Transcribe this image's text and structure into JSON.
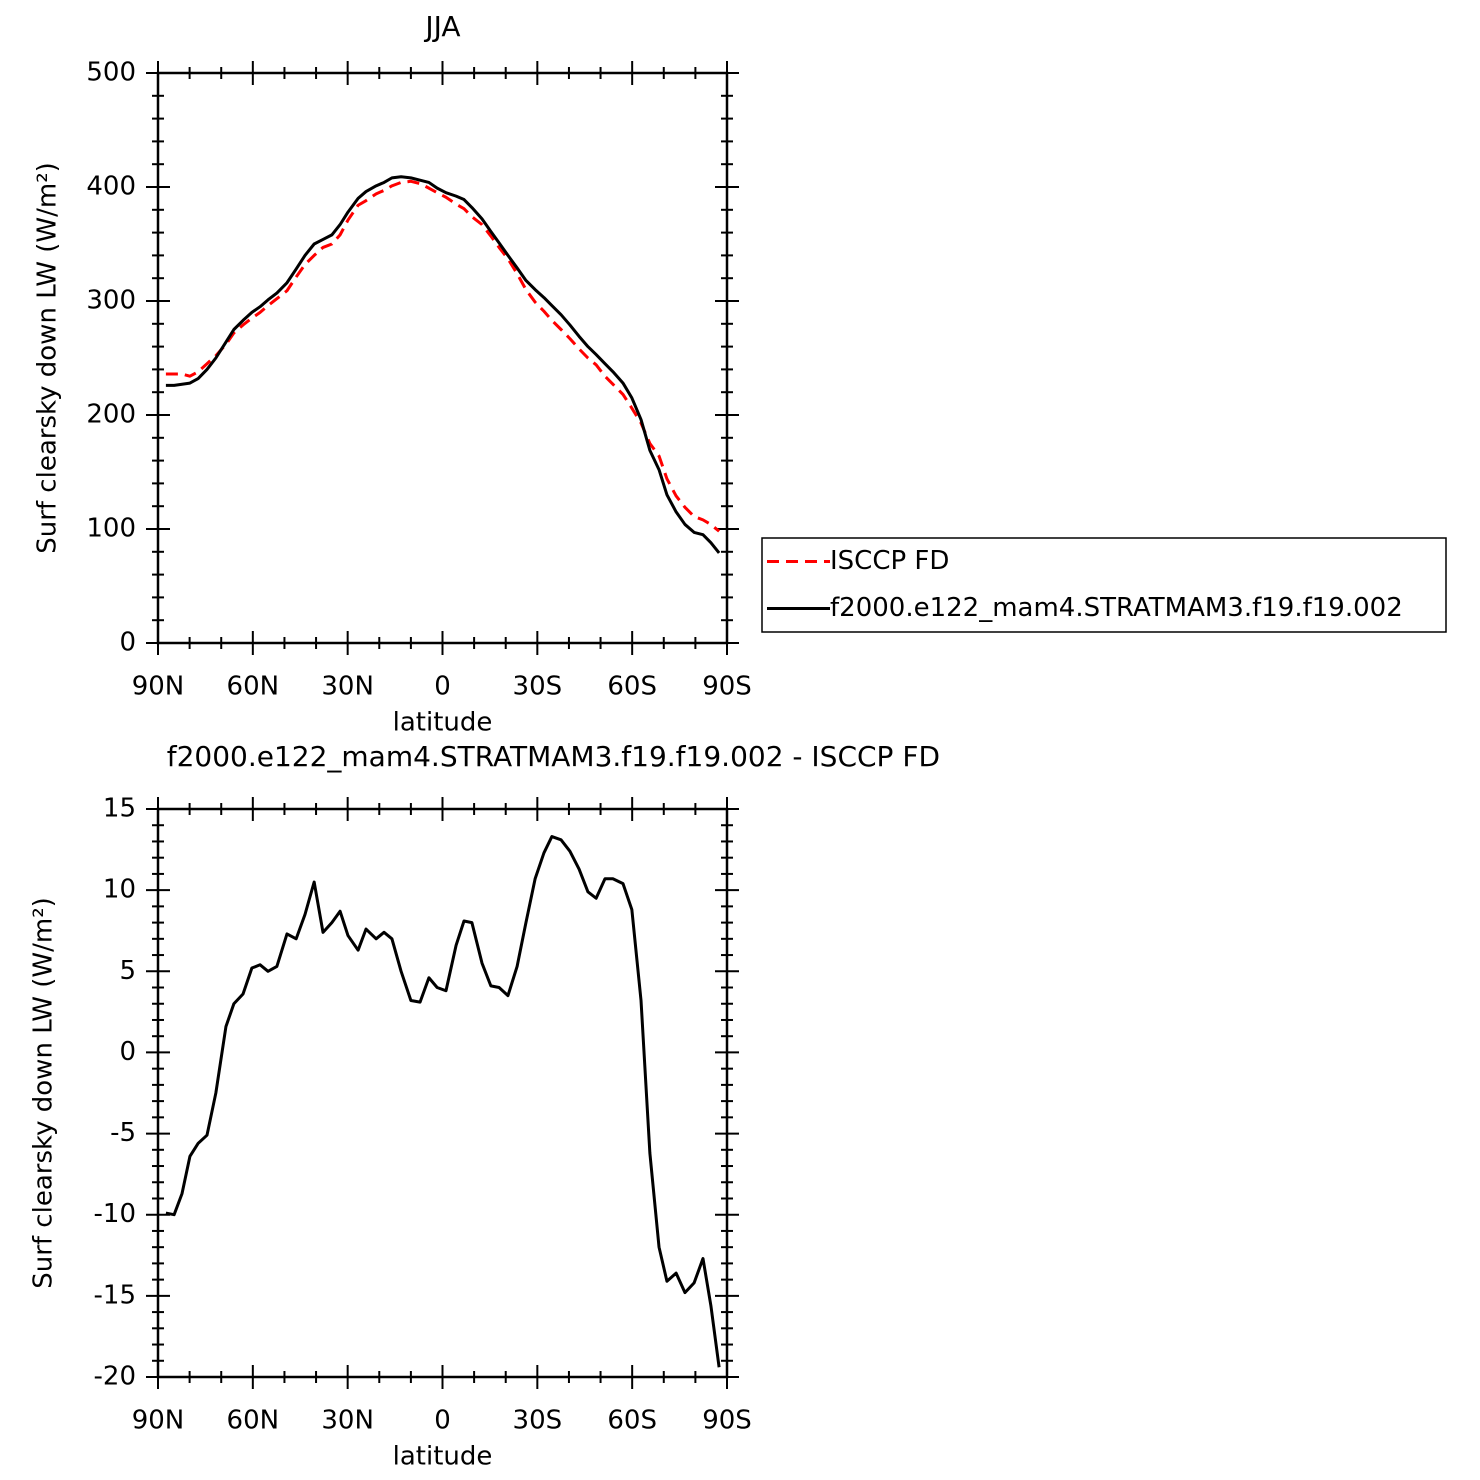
{
  "chart_data": [
    {
      "type": "line",
      "title": "JJA",
      "xlabel": "latitude",
      "ylabel": "Surf clearsky down LW (W/m²)",
      "x": [
        87.5,
        84.9,
        82.4,
        79.9,
        77.3,
        74.5,
        71.7,
        68.5,
        66.0,
        63.1,
        60.3,
        57.7,
        55.2,
        52.4,
        49.2,
        46.3,
        43.5,
        40.6,
        37.8,
        35.0,
        32.4,
        29.9,
        26.7,
        24.2,
        21.0,
        18.5,
        16.0,
        13.1,
        10.0,
        7.1,
        4.3,
        1.7,
        -1.1,
        -4.3,
        -6.8,
        -9.3,
        -12.5,
        -15.3,
        -17.9,
        -20.7,
        -23.6,
        -26.4,
        -29.3,
        -32.1,
        -34.6,
        -37.5,
        -40.3,
        -43.2,
        -46.0,
        -48.6,
        -51.4,
        -53.9,
        -57.1,
        -59.9,
        -62.8,
        -65.6,
        -68.5,
        -71.0,
        -73.9,
        -76.7,
        -79.6,
        -82.4,
        -84.9,
        -87.5
      ],
      "series": [
        {
          "name": "ISCCP FD",
          "color": "#ff0000",
          "line_style": "dashed",
          "values": [
            236,
            236,
            236,
            234,
            238,
            245,
            252,
            262,
            272,
            279,
            285,
            290,
            296,
            302,
            309,
            321,
            332,
            340,
            347,
            350,
            358,
            371,
            384,
            388,
            394,
            397,
            401,
            404,
            405,
            403,
            399,
            395,
            391,
            385,
            381,
            374,
            367,
            357,
            347,
            337,
            324,
            310,
            299,
            291,
            283,
            275,
            267,
            258,
            250,
            244,
            234,
            227,
            218,
            206,
            193,
            175,
            164,
            144,
            129,
            119,
            111,
            108,
            104,
            98
          ]
        },
        {
          "name": "f2000.e122_mam4.STRATMAM3.f19.f19.002",
          "color": "#000000",
          "line_style": "solid",
          "values": [
            226,
            226,
            227,
            228,
            232,
            240,
            250,
            264,
            275,
            283,
            290,
            295,
            301,
            307,
            316,
            328,
            340,
            350,
            354,
            358,
            367,
            378,
            390,
            396,
            401,
            404,
            408,
            409,
            408,
            406,
            404,
            399,
            395,
            392,
            389,
            382,
            372,
            361,
            351,
            340,
            329,
            318,
            310,
            303,
            296,
            288,
            279,
            269,
            260,
            253,
            245,
            238,
            228,
            215,
            196,
            169,
            152,
            130,
            115,
            104,
            97,
            95,
            88,
            79
          ]
        }
      ],
      "xlim": [
        90,
        -90
      ],
      "xticks": [
        {
          "value": 90,
          "label": "90N"
        },
        {
          "value": 60,
          "label": "60N"
        },
        {
          "value": 30,
          "label": "30N"
        },
        0,
        {
          "value": -30,
          "label": "30S"
        },
        {
          "value": -60,
          "label": "60S"
        },
        {
          "value": -90,
          "label": "90S"
        }
      ],
      "ylim": [
        0,
        500
      ],
      "yticks": [
        0,
        100,
        200,
        300,
        400,
        500
      ],
      "legend": "right"
    },
    {
      "type": "line",
      "title": "f2000.e122_mam4.STRATMAM3.f19.f19.002 - ISCCP FD",
      "xlabel": "latitude",
      "ylabel": "Surf clearsky down LW (W/m²)",
      "x": [
        87.5,
        84.9,
        82.4,
        79.9,
        77.3,
        74.5,
        71.7,
        68.5,
        66.0,
        63.1,
        60.3,
        57.7,
        55.2,
        52.4,
        49.2,
        46.3,
        43.5,
        40.6,
        37.8,
        35.0,
        32.4,
        29.9,
        26.7,
        24.2,
        21.0,
        18.5,
        16.0,
        13.1,
        10.0,
        7.1,
        4.3,
        1.7,
        -1.1,
        -4.3,
        -6.8,
        -9.3,
        -12.5,
        -15.3,
        -17.9,
        -20.7,
        -23.6,
        -26.4,
        -29.3,
        -32.1,
        -34.6,
        -37.5,
        -40.3,
        -43.2,
        -46.0,
        -48.6,
        -51.4,
        -53.9,
        -57.1,
        -59.9,
        -62.8,
        -65.6,
        -68.5,
        -71.0,
        -73.9,
        -76.7,
        -79.6,
        -82.4,
        -84.9,
        -87.5
      ],
      "values": [
        -9.9,
        -10.0,
        -8.7,
        -6.4,
        -5.6,
        -5.1,
        -2.5,
        1.6,
        3.0,
        3.6,
        5.2,
        5.4,
        5.0,
        5.3,
        7.3,
        7.0,
        8.5,
        10.5,
        7.4,
        8.0,
        8.7,
        7.2,
        6.3,
        7.6,
        7.0,
        7.4,
        7.0,
        5.0,
        3.2,
        3.1,
        4.6,
        4.0,
        3.8,
        6.6,
        8.1,
        8.0,
        5.5,
        4.1,
        4.0,
        3.5,
        5.3,
        8.0,
        10.7,
        12.3,
        13.3,
        13.1,
        12.4,
        11.3,
        9.9,
        9.5,
        10.7,
        10.7,
        10.4,
        8.8,
        3.2,
        -6.2,
        -12.0,
        -14.1,
        -13.6,
        -14.8,
        -14.2,
        -12.7,
        -15.6,
        -19.4
      ],
      "color": "#000000",
      "xlim": [
        90,
        -90
      ],
      "xticks": [
        {
          "value": 90,
          "label": "90N"
        },
        {
          "value": 60,
          "label": "60N"
        },
        {
          "value": 30,
          "label": "30N"
        },
        0,
        {
          "value": -30,
          "label": "30S"
        },
        {
          "value": -60,
          "label": "60S"
        },
        {
          "value": -90,
          "label": "90S"
        }
      ],
      "ylim": [
        -20,
        15
      ],
      "yticks": [
        -20,
        -15,
        -10,
        -5,
        0,
        5,
        10,
        15
      ]
    }
  ]
}
